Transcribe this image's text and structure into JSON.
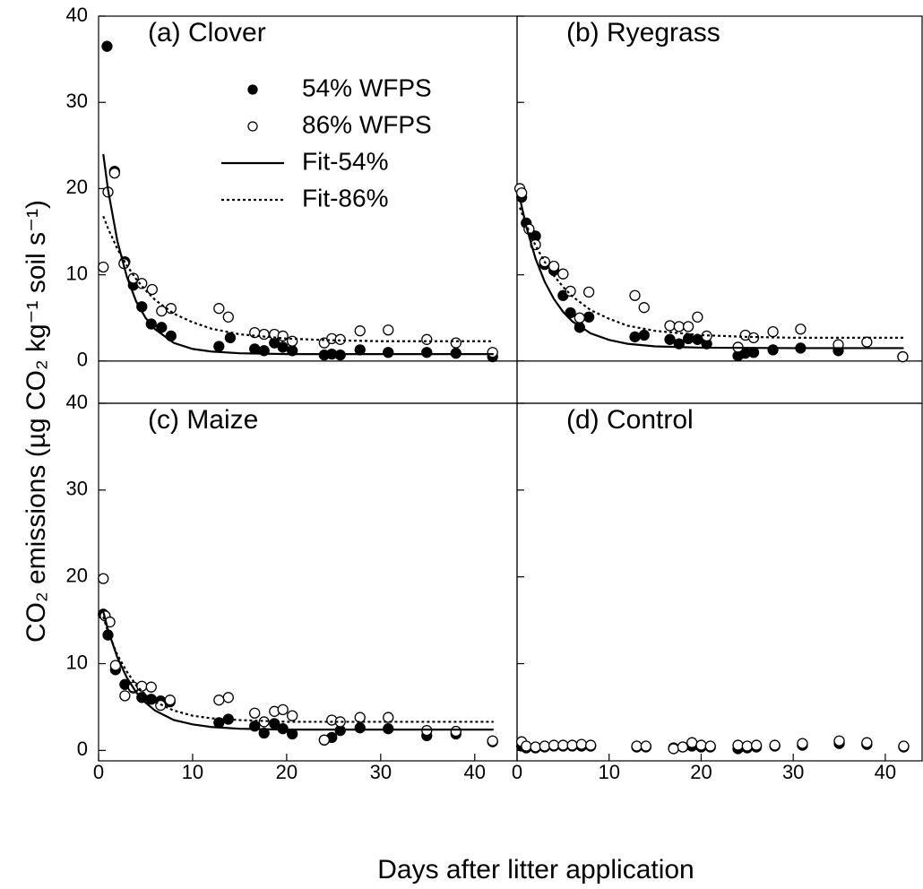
{
  "y_label": "CO₂ emissions (µg CO₂ kg⁻¹ soil s⁻¹)",
  "x_label": "Days after litter application",
  "chart_data": [
    {
      "type": "scatter",
      "title": "(a) Clover",
      "xlim": [
        0,
        44.5
      ],
      "ylim": [
        -4.9,
        40
      ],
      "yticks": [
        0,
        10,
        20,
        30,
        40
      ],
      "zero_line": true,
      "legend": "upper right",
      "series": [
        {
          "name": "54% WFPS",
          "color": "#000000",
          "marker": "filled",
          "x": [
            0.9,
            1.7,
            2.8,
            3.7,
            4.6,
            5.6,
            6.7,
            7.7,
            12.8,
            14.0,
            16.6,
            17.6,
            18.7,
            19.6,
            20.6,
            24.0,
            24.8,
            25.7,
            27.8,
            30.8,
            34.9,
            38.0,
            41.9
          ],
          "values": [
            36.5,
            22,
            11.5,
            8.8,
            6.3,
            4.3,
            3.9,
            2.9,
            1.7,
            2.7,
            1.4,
            1.2,
            2.1,
            1.6,
            1.2,
            0.7,
            0.8,
            0.7,
            1.3,
            1.0,
            1.0,
            0.9,
            0.5
          ]
        },
        {
          "name": "86% WFPS",
          "color": "#000000",
          "marker": "open",
          "x": [
            0.5,
            1.0,
            1.7,
            2.7,
            3.7,
            4.6,
            5.7,
            6.7,
            7.7,
            12.8,
            13.8,
            16.6,
            17.6,
            18.7,
            19.6,
            20.6,
            24.0,
            24.8,
            25.7,
            27.8,
            30.8,
            34.9,
            38.0,
            41.9
          ],
          "values": [
            10.9,
            19.6,
            21.8,
            11.3,
            9.6,
            9.0,
            8.3,
            5.8,
            6.1,
            6.1,
            5.1,
            3.3,
            3.1,
            3.1,
            2.9,
            2.3,
            2.1,
            2.6,
            2.5,
            3.5,
            3.6,
            2.5,
            2.1,
            1.0
          ]
        },
        {
          "name": "Fit-54%",
          "type": "line",
          "color": "#000000",
          "line_style": "solid",
          "x": [
            0.5,
            1,
            2,
            3,
            4,
            5,
            6,
            8,
            10,
            12,
            15,
            20,
            30,
            42
          ],
          "values": [
            24.0,
            19.9,
            13.9,
            9.8,
            6.9,
            5.0,
            3.7,
            2.1,
            1.4,
            1.1,
            0.9,
            0.8,
            0.8,
            0.8
          ]
        },
        {
          "name": "Fit-86%",
          "type": "line",
          "color": "#000000",
          "line_style": "dotted",
          "x": [
            0.5,
            1,
            2,
            3,
            4,
            5,
            6,
            8,
            10,
            12,
            15,
            20,
            25,
            30,
            42
          ],
          "values": [
            16.8,
            15.4,
            13.0,
            11.1,
            9.5,
            8.2,
            7.1,
            5.5,
            4.5,
            3.75,
            3.1,
            2.6,
            2.4,
            2.3,
            2.3
          ]
        }
      ]
    },
    {
      "type": "scatter",
      "title": "(b) Ryegrass",
      "xlim": [
        0,
        44
      ],
      "ylim": [
        -4.9,
        40
      ],
      "yticks": [
        0,
        10,
        20,
        30,
        40
      ],
      "zero_line": true,
      "series": [
        {
          "color": "#000000",
          "marker": "filled",
          "x": [
            0.5,
            1,
            2,
            3,
            4,
            5,
            5.8,
            6.8,
            7.8,
            12.8,
            13.8,
            16.6,
            17.6,
            18.6,
            19.6,
            20.6,
            24.0,
            24.8,
            25.7,
            27.8,
            30.8,
            34.9,
            41.9
          ],
          "values": [
            19,
            16,
            14.5,
            11.2,
            10.5,
            7.6,
            5.6,
            3.9,
            5.1,
            2.8,
            3.0,
            2.5,
            2.0,
            2.6,
            2.5,
            2.0,
            0.6,
            0.9,
            1.0,
            1.3,
            1.5,
            1.2,
            0.5
          ]
        },
        {
          "color": "#000000",
          "marker": "open",
          "x": [
            0.3,
            0.5,
            1.3,
            2,
            3,
            4,
            5,
            5.8,
            6.8,
            7.8,
            12.8,
            13.8,
            16.6,
            17.6,
            18.6,
            19.6,
            20.6,
            24.0,
            24.8,
            25.7,
            27.8,
            30.8,
            34.9,
            38,
            41.9
          ],
          "values": [
            20,
            19.5,
            15.3,
            13.5,
            11.5,
            11,
            10.1,
            8.1,
            5.0,
            8.0,
            7.6,
            6.2,
            4.1,
            4.0,
            4.0,
            5.1,
            2.9,
            1.6,
            3.0,
            2.7,
            3.4,
            3.7,
            1.9,
            2.2,
            0.5
          ]
        },
        {
          "type": "line",
          "color": "#000000",
          "line_style": "solid",
          "x": [
            0.3,
            1,
            2,
            3,
            4,
            5,
            6,
            8,
            10,
            12,
            15,
            20,
            30,
            42
          ],
          "values": [
            18.9,
            15.6,
            11.9,
            9.2,
            7.2,
            5.7,
            4.6,
            3.2,
            2.45,
            2.0,
            1.7,
            1.55,
            1.5,
            1.5
          ]
        },
        {
          "type": "line",
          "color": "#000000",
          "line_style": "dotted",
          "x": [
            0.3,
            1,
            2,
            3,
            4,
            5,
            6,
            8,
            10,
            12,
            15,
            20,
            25,
            30,
            42
          ],
          "values": [
            17.8,
            15.8,
            13.4,
            11.5,
            9.9,
            8.6,
            7.5,
            5.9,
            4.9,
            4.1,
            3.5,
            3.0,
            2.8,
            2.7,
            2.7
          ]
        }
      ]
    },
    {
      "type": "scatter",
      "title": "(c) Maize",
      "xlim": [
        0,
        44.5
      ],
      "ylim": [
        -1.2,
        40
      ],
      "yticks": [
        0,
        10,
        20,
        30,
        40
      ],
      "xticks": [
        0,
        10,
        20,
        30,
        40
      ],
      "series": [
        {
          "color": "#000000",
          "marker": "filled",
          "x": [
            0.5,
            1,
            1.8,
            2.8,
            3.7,
            4.6,
            5.6,
            6.6,
            7.6,
            12.8,
            13.8,
            16.6,
            17.6,
            18.7,
            19.6,
            20.6,
            24.0,
            24.8,
            25.7,
            27.8,
            30.8,
            34.9,
            38.0,
            41.9
          ],
          "values": [
            15.7,
            13.3,
            9.3,
            7.6,
            7.2,
            6.1,
            5.9,
            5.7,
            5.6,
            3.2,
            3.6,
            2.8,
            2.0,
            3.1,
            2.5,
            1.9,
            1.2,
            1.5,
            2.3,
            2.6,
            2.5,
            1.7,
            1.9,
            1.0
          ]
        },
        {
          "color": "#000000",
          "marker": "open",
          "x": [
            0.5,
            0.7,
            1.2,
            1.8,
            2.8,
            3.7,
            4.6,
            5.6,
            6.6,
            7.6,
            12.8,
            13.8,
            16.6,
            17.6,
            18.7,
            19.6,
            20.6,
            24.0,
            24.8,
            25.7,
            27.8,
            30.8,
            34.9,
            38.0,
            41.9
          ],
          "values": [
            19.8,
            15.5,
            14.8,
            9.8,
            6.3,
            7.3,
            7.4,
            7.3,
            5.2,
            5.8,
            5.8,
            6.1,
            4.3,
            3.3,
            4.5,
            4.7,
            4.0,
            1.2,
            3.5,
            3.3,
            3.8,
            3.8,
            2.3,
            2.2,
            1.1
          ]
        },
        {
          "type": "line",
          "color": "#000000",
          "line_style": "solid",
          "x": [
            0.5,
            1,
            2,
            3,
            4,
            5,
            6,
            8,
            10,
            12,
            15,
            20,
            42
          ],
          "values": [
            16.0,
            13.9,
            10.7,
            8.4,
            6.7,
            5.5,
            4.6,
            3.5,
            3.0,
            2.7,
            2.5,
            2.4,
            2.4
          ]
        },
        {
          "type": "line",
          "color": "#000000",
          "line_style": "dotted",
          "x": [
            0.5,
            1,
            2,
            3,
            4,
            5,
            6,
            8,
            10,
            12,
            15,
            20,
            42
          ],
          "values": [
            15.4,
            13.7,
            11.0,
            9.1,
            7.5,
            6.4,
            5.6,
            4.6,
            4.0,
            3.7,
            3.5,
            3.3,
            3.3
          ]
        }
      ]
    },
    {
      "type": "scatter",
      "title": "(d) Control",
      "xlim": [
        0,
        44
      ],
      "ylim": [
        -1.2,
        40
      ],
      "yticks": [
        0,
        10,
        20,
        30,
        40
      ],
      "xticks": [
        0,
        10,
        20,
        30,
        40
      ],
      "series": [
        {
          "color": "#000000",
          "marker": "filled",
          "x": [
            0.5,
            1,
            2,
            3,
            4,
            5,
            6,
            7,
            8,
            13,
            14,
            17,
            18,
            19,
            20,
            21,
            24,
            25,
            26,
            28,
            31,
            35,
            38,
            42
          ],
          "values": [
            0.5,
            0.3,
            0.3,
            0.4,
            0.5,
            0.5,
            0.5,
            0.5,
            0.5,
            0.4,
            0.4,
            0.3,
            0.4,
            0.5,
            0.4,
            0.4,
            0.2,
            0.3,
            0.4,
            0.5,
            0.6,
            0.8,
            0.7,
            0.4
          ]
        },
        {
          "color": "#000000",
          "marker": "open",
          "x": [
            0.5,
            1,
            2,
            3,
            4,
            5,
            6,
            7,
            8,
            13,
            14,
            17,
            18,
            19,
            20,
            21,
            24,
            25,
            26,
            28,
            31,
            35,
            38,
            42
          ],
          "values": [
            1.0,
            0.5,
            0.4,
            0.5,
            0.6,
            0.6,
            0.6,
            0.7,
            0.6,
            0.5,
            0.5,
            0.2,
            0.4,
            0.9,
            0.6,
            0.5,
            0.6,
            0.5,
            0.6,
            0.6,
            0.8,
            1.1,
            0.9,
            0.5
          ]
        }
      ]
    }
  ]
}
